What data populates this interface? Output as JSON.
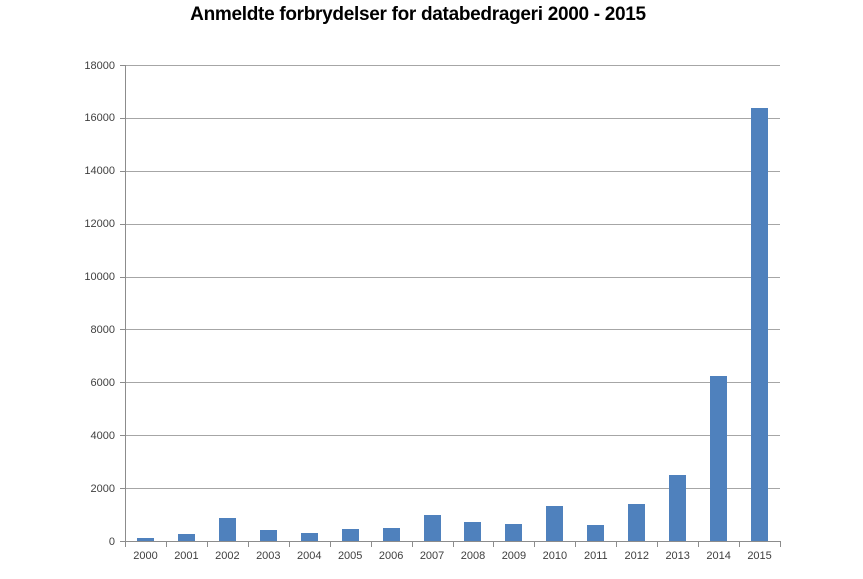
{
  "chart_data": {
    "type": "bar",
    "title": "Anmeldte forbrydelser for databedrageri 2000 - 2015",
    "categories": [
      "2000",
      "2001",
      "2002",
      "2003",
      "2004",
      "2005",
      "2006",
      "2007",
      "2008",
      "2009",
      "2010",
      "2011",
      "2012",
      "2013",
      "2014",
      "2015"
    ],
    "values": [
      100,
      250,
      880,
      430,
      320,
      470,
      480,
      980,
      710,
      660,
      1310,
      590,
      1400,
      2490,
      6230,
      16370
    ],
    "xlabel": "",
    "ylabel": "",
    "ylim": [
      0,
      18000
    ],
    "ytick_step": 2000,
    "ytick_labels": [
      "0",
      "2000",
      "4000",
      "6000",
      "8000",
      "10000",
      "12000",
      "14000",
      "16000",
      "18000"
    ],
    "grid": true,
    "legend_position": "none",
    "colors": {
      "bar": "#4F81BD",
      "gridline": "#A6A6A6",
      "axis": "#8C8C8C",
      "tick_label": "#3F3F3F",
      "title": "#000000",
      "background": "#FFFFFF"
    }
  }
}
